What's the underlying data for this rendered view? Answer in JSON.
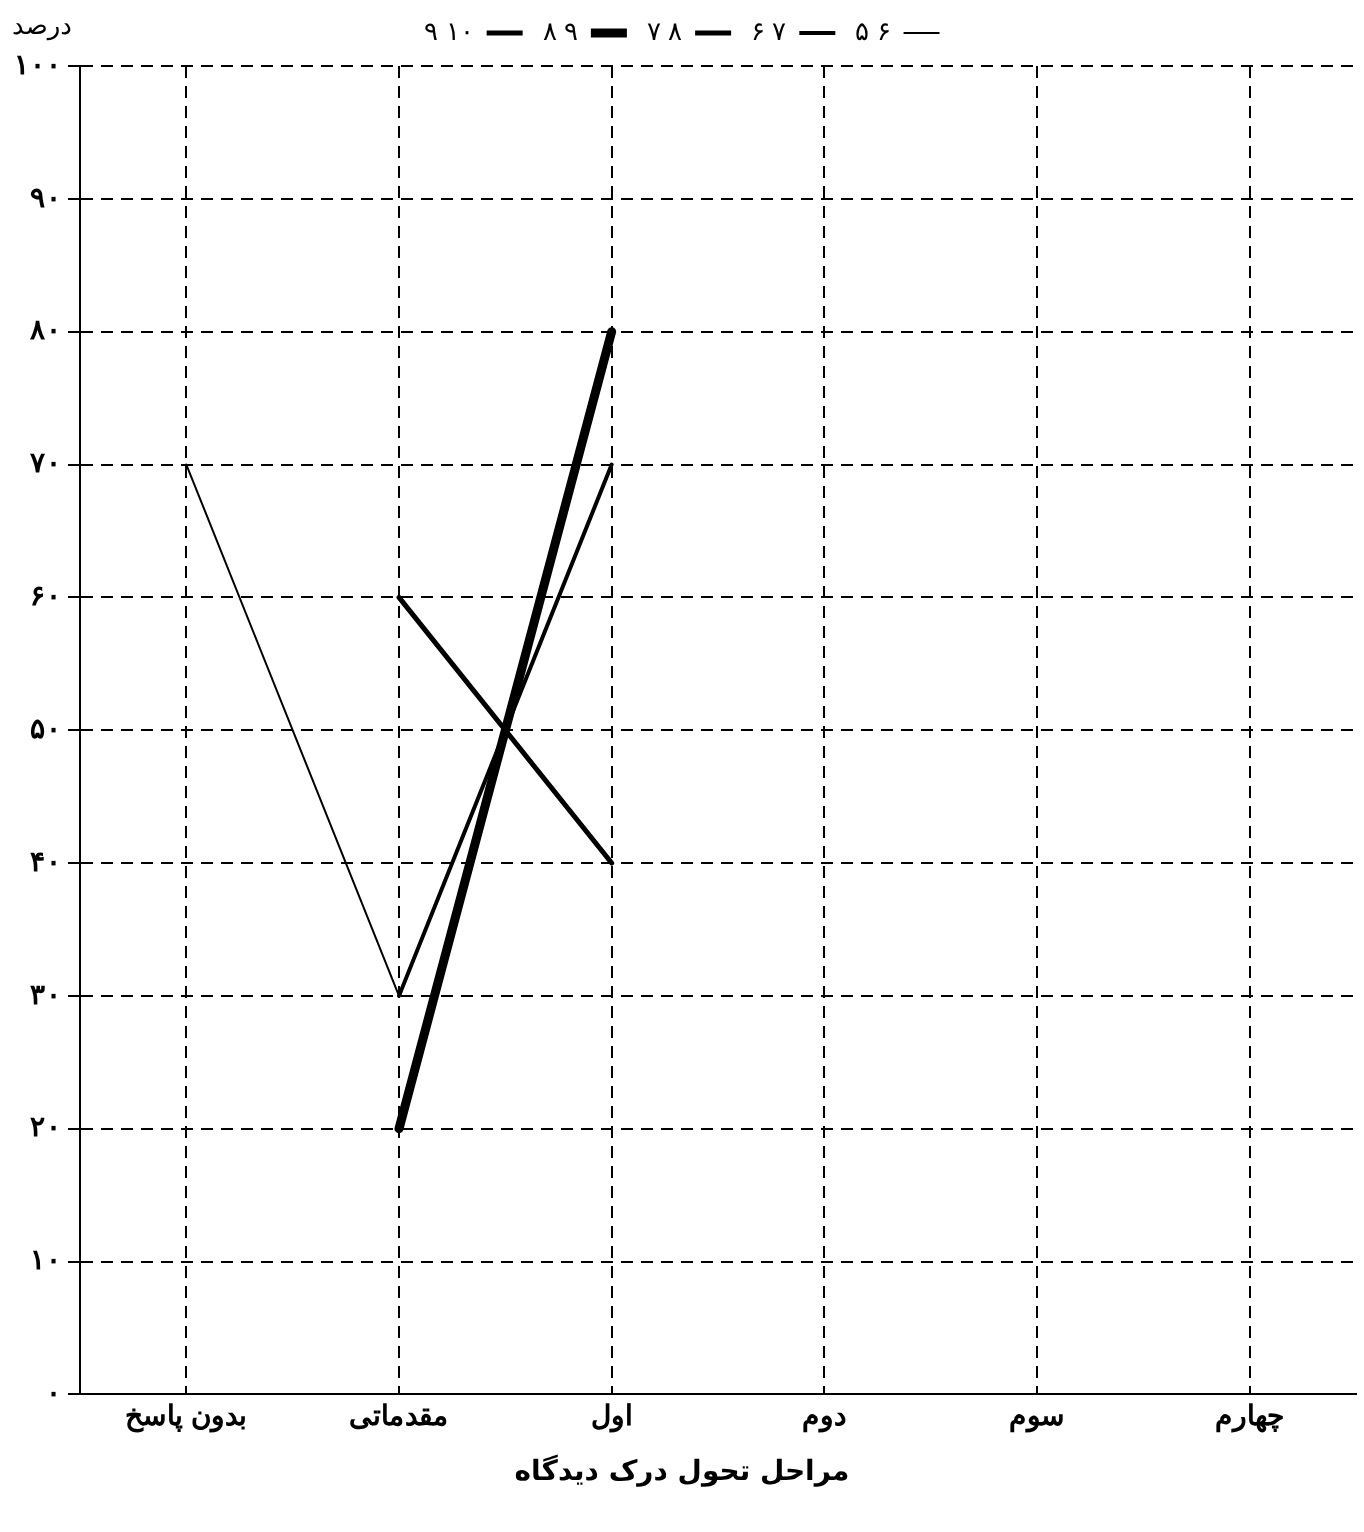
{
  "chart_data": {
    "type": "line",
    "ylabel": "درصد",
    "xlabel": "مراحل تحول درک دیدگاه",
    "categories": [
      "بدون پاسخ",
      "مقدماتی",
      "اول",
      "دوم",
      "سوم",
      "چهارم"
    ],
    "series": [
      {
        "name": "۵ ۶",
        "color": "#000000",
        "values": [
          70,
          30,
          null,
          null,
          null,
          null
        ]
      },
      {
        "name": "۶ ۷",
        "color": "#000000",
        "values": [
          null,
          30,
          70,
          null,
          null,
          null
        ]
      },
      {
        "name": "۷ ۸",
        "color": "#000000",
        "values": [
          null,
          60,
          40,
          null,
          null,
          null
        ]
      },
      {
        "name": "۸ ۹",
        "color": "#000000",
        "values": [
          null,
          20,
          80,
          null,
          null,
          null
        ]
      },
      {
        "name": "۹ ۱۰",
        "color": "#000000",
        "values": [
          null,
          null,
          null,
          null,
          null,
          null
        ]
      }
    ],
    "ylim": [
      0,
      100
    ],
    "yticks": [
      {
        "value": 0,
        "label": "۰"
      },
      {
        "value": 10,
        "label": "۱۰"
      },
      {
        "value": 20,
        "label": "۲۰"
      },
      {
        "value": 30,
        "label": "۳۰"
      },
      {
        "value": 40,
        "label": "۴۰"
      },
      {
        "value": 50,
        "label": "۵۰"
      },
      {
        "value": 60,
        "label": "۶۰"
      },
      {
        "value": 70,
        "label": "۷۰"
      },
      {
        "value": 80,
        "label": "۸۰"
      },
      {
        "value": 90,
        "label": "۹۰"
      },
      {
        "value": 100,
        "label": "۱۰۰"
      }
    ],
    "grid": true,
    "legend": "top",
    "marker": "none",
    "line_style": "solid"
  }
}
